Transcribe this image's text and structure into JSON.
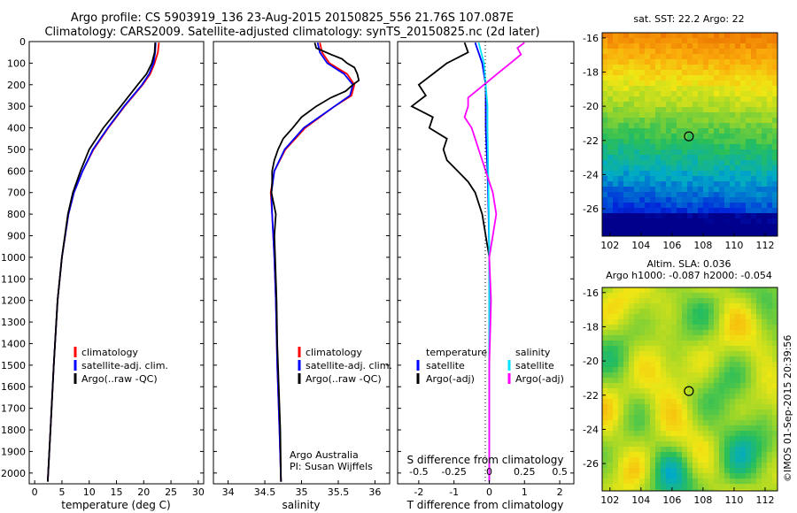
{
  "header": {
    "title_line1": "Argo profile: CS 5903919_136 23-Aug-2015 20150825_556 21.76S 107.087E",
    "title_line2": "Climatology: CARS2009. Satellite-adjusted climatology: synTS_20150825.nc (2d later)"
  },
  "credit": "©IMOS 01-Sep-2015 20:39:56",
  "colors": {
    "climatology": "#ff0000",
    "satellite": "#0000ff",
    "argo": "#000000",
    "salinity_satellite": "#00e5ff",
    "salinity_argo": "#ff00ff"
  },
  "chart_data": [
    {
      "id": "temperature",
      "type": "line",
      "xlabel": "temperature (deg C)",
      "ylabel": "",
      "xlim": [
        -1,
        31
      ],
      "ylim": [
        2050,
        0
      ],
      "xticks": [
        0,
        5,
        10,
        15,
        20,
        25,
        30
      ],
      "yticks": [
        0,
        100,
        200,
        300,
        400,
        500,
        600,
        700,
        800,
        900,
        1000,
        1100,
        1200,
        1300,
        1400,
        1500,
        1600,
        1700,
        1800,
        1900,
        2000
      ],
      "legend": [
        "climatology",
        "satellite-adj. clim.",
        "Argo(..raw -QC)"
      ],
      "series": [
        {
          "name": "climatology",
          "color": "#ff0000",
          "depth": [
            5,
            50,
            100,
            150,
            200,
            300,
            400,
            500,
            600,
            700,
            800,
            1000,
            1200,
            1500,
            1800,
            2040
          ],
          "values": [
            22.8,
            22.6,
            22.0,
            21.2,
            19.8,
            16.5,
            13.5,
            10.8,
            8.8,
            7.2,
            6.2,
            5.0,
            4.2,
            3.5,
            2.9,
            2.4
          ]
        },
        {
          "name": "satellite-adj. clim.",
          "color": "#0000ff",
          "depth": [
            5,
            50,
            100,
            150,
            200,
            300,
            400,
            500,
            600,
            700,
            800,
            1000,
            1200,
            1500,
            1800,
            2040
          ],
          "values": [
            22.2,
            22.1,
            21.8,
            21.0,
            19.7,
            16.4,
            13.4,
            10.7,
            8.8,
            7.2,
            6.2,
            5.0,
            4.2,
            3.5,
            2.9,
            2.4
          ]
        },
        {
          "name": "Argo(..raw -QC)",
          "color": "#000000",
          "depth": [
            5,
            50,
            100,
            150,
            200,
            300,
            400,
            500,
            600,
            700,
            800,
            1000,
            1200,
            1500,
            1800,
            2040
          ],
          "values": [
            22.1,
            22.0,
            21.5,
            20.5,
            18.9,
            15.8,
            12.6,
            10.0,
            8.4,
            7.0,
            6.1,
            5.0,
            4.2,
            3.5,
            2.9,
            2.4
          ]
        }
      ]
    },
    {
      "id": "salinity",
      "type": "line",
      "xlabel": "salinity",
      "xlim": [
        33.8,
        36.2
      ],
      "ylim": [
        2050,
        0
      ],
      "xticks": [
        34,
        34.5,
        35,
        35.5,
        36
      ],
      "legend": [
        "climatology",
        "satellite-adj. clim.",
        "Argo(..raw -QC)"
      ],
      "annotations": [
        "Argo Australia",
        "PI: Susan Wijffels"
      ],
      "series": [
        {
          "name": "climatology",
          "color": "#ff0000",
          "depth": [
            5,
            50,
            100,
            150,
            200,
            250,
            300,
            400,
            500,
            600,
            700,
            800,
            1000,
            1200,
            1500,
            1800,
            2040
          ],
          "values": [
            35.25,
            35.28,
            35.38,
            35.62,
            35.72,
            35.68,
            35.45,
            35.05,
            34.78,
            34.63,
            34.58,
            34.6,
            34.63,
            34.65,
            34.67,
            34.7,
            34.72
          ]
        },
        {
          "name": "satellite-adj. clim.",
          "color": "#0000ff",
          "depth": [
            5,
            50,
            100,
            150,
            200,
            250,
            300,
            400,
            500,
            600,
            700,
            800,
            1000,
            1200,
            1500,
            1800,
            2040
          ],
          "values": [
            35.22,
            35.25,
            35.35,
            35.58,
            35.7,
            35.66,
            35.45,
            35.03,
            34.77,
            34.63,
            34.59,
            34.6,
            34.63,
            34.65,
            34.67,
            34.7,
            34.72
          ]
        },
        {
          "name": "Argo(..raw -QC)",
          "color": "#000000",
          "depth": [
            5,
            30,
            60,
            80,
            100,
            120,
            150,
            180,
            200,
            230,
            260,
            300,
            350,
            400,
            450,
            500,
            550,
            600,
            650,
            700,
            750,
            800,
            900,
            1000,
            1200,
            1400,
            1600,
            1800,
            2040
          ],
          "values": [
            35.18,
            35.2,
            35.4,
            35.55,
            35.62,
            35.72,
            35.76,
            35.78,
            35.7,
            35.6,
            35.4,
            35.2,
            35.0,
            34.88,
            34.75,
            34.68,
            34.63,
            34.6,
            34.6,
            34.59,
            34.62,
            34.65,
            34.63,
            34.64,
            34.66,
            34.67,
            34.69,
            34.71,
            34.72
          ]
        }
      ]
    },
    {
      "id": "difference",
      "type": "line",
      "xlabel": "T difference from climatology",
      "x2label": "S difference from climatology",
      "xlim": [
        -2.6,
        2.4
      ],
      "ylim": [
        2050,
        0
      ],
      "xticks": [
        -2,
        -1,
        0,
        1,
        2
      ],
      "x2ticks": [
        "-0.5",
        "-0.25",
        "0",
        "0.25",
        "0.5"
      ],
      "legend": [
        {
          "heading": "temperature",
          "items": [
            "satellite",
            "Argo(-adj)"
          ]
        },
        {
          "heading": "salinity",
          "items": [
            "satellite",
            "Argo(-adj)"
          ]
        }
      ],
      "series": [
        {
          "name": "temperature satellite",
          "color": "#0000ff",
          "depth": [
            5,
            100,
            200,
            400,
            600,
            800,
            1000,
            1400,
            1800,
            2040
          ],
          "values": [
            -0.4,
            -0.2,
            -0.1,
            -0.1,
            -0.05,
            -0.02,
            0.0,
            0.0,
            0.0,
            0.0
          ]
        },
        {
          "name": "temperature Argo(-adj)",
          "color": "#000000",
          "depth": [
            5,
            50,
            100,
            150,
            200,
            250,
            300,
            350,
            400,
            450,
            500,
            550,
            600,
            650,
            700,
            800,
            900,
            1000,
            1200,
            1500,
            1800,
            2040
          ],
          "values": [
            -0.7,
            -0.6,
            -1.2,
            -1.6,
            -2.0,
            -1.8,
            -2.2,
            -1.6,
            -1.7,
            -1.2,
            -1.3,
            -1.2,
            -0.9,
            -0.6,
            -0.4,
            -0.2,
            -0.1,
            0.0,
            0.0,
            0.0,
            0.0,
            0.0
          ]
        },
        {
          "name": "salinity satellite",
          "color": "#00e5ff",
          "depth": [
            5,
            100,
            200,
            300,
            400,
            600,
            800,
            1000,
            1400,
            1800,
            2040
          ],
          "values": [
            -0.3,
            -0.15,
            -0.1,
            -0.05,
            -0.05,
            -0.03,
            -0.01,
            0.0,
            0.0,
            0.0,
            0.0
          ]
        },
        {
          "name": "salinity Argo(-adj)",
          "color": "#ff00ff",
          "depth": [
            5,
            30,
            60,
            100,
            140,
            180,
            220,
            260,
            300,
            350,
            400,
            450,
            500,
            550,
            600,
            700,
            800,
            900,
            1000,
            1200,
            1500,
            1800,
            2040
          ],
          "values": [
            1.0,
            0.8,
            0.9,
            0.6,
            0.3,
            0.0,
            -0.3,
            -0.6,
            -0.6,
            -0.7,
            -0.5,
            -0.4,
            -0.3,
            -0.2,
            -0.1,
            0.1,
            0.2,
            0.1,
            0.0,
            0.05,
            0.0,
            0.0,
            0.0
          ]
        }
      ]
    },
    {
      "id": "sst-map",
      "type": "heatmap",
      "title": "sat. SST: 22.2 Argo: 22",
      "xticks": [
        102,
        104,
        106,
        108,
        110,
        112
      ],
      "yticks": [
        -16,
        -18,
        -20,
        -22,
        -24,
        -26
      ],
      "xlim": [
        101.5,
        112.8
      ],
      "ylim": [
        -27.6,
        -15.7
      ],
      "marker": {
        "lon": 107.087,
        "lat": -21.76
      }
    },
    {
      "id": "sla-map",
      "type": "heatmap",
      "title": "Altim. SLA: 0.036",
      "subtitle": "Argo h1000: -0.087 h2000: -0.054",
      "xticks": [
        102,
        104,
        106,
        108,
        110,
        112
      ],
      "yticks": [
        -16,
        -18,
        -20,
        -22,
        -24,
        -26
      ],
      "xlim": [
        101.5,
        112.8
      ],
      "ylim": [
        -27.6,
        -15.7
      ],
      "marker": {
        "lon": 107.087,
        "lat": -21.76
      }
    }
  ]
}
